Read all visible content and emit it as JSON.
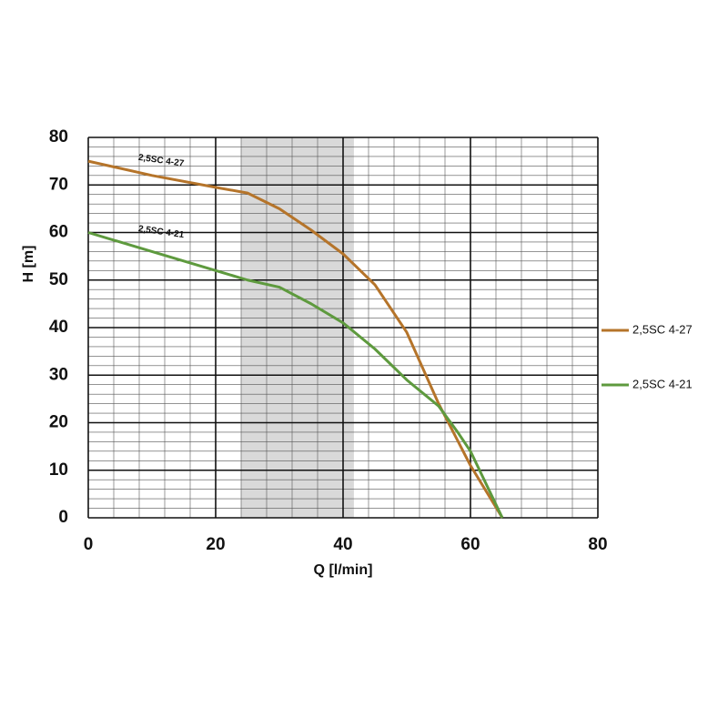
{
  "chart_data": {
    "type": "line",
    "xlabel": "Q [l/min]",
    "ylabel": "H [m]",
    "xlim": [
      0,
      80
    ],
    "xticks": [
      0,
      20,
      40,
      60,
      80
    ],
    "ylim": [
      0,
      80
    ],
    "yticks": [
      0,
      10,
      20,
      30,
      40,
      50,
      60,
      70,
      80
    ],
    "grid": true,
    "minor_xstep": 4,
    "minor_ystep": 2,
    "highlight_xrange": [
      24,
      41.7
    ],
    "highlight_color": "#d9d9d9",
    "legend": "right",
    "series": [
      {
        "name": "2,5SC 4-27",
        "color": "#b5742a",
        "x": [
          0,
          10,
          20,
          25,
          30,
          35,
          40,
          45,
          50,
          55,
          60,
          65
        ],
        "values": [
          75,
          72,
          69.5,
          68.3,
          65,
          60.5,
          55.5,
          49,
          39,
          24,
          11,
          0
        ]
      },
      {
        "name": "2,5SC 4-21",
        "color": "#5e9a3e",
        "x": [
          0,
          10,
          20,
          25,
          30,
          35,
          40,
          45,
          50,
          55,
          58,
          60,
          65
        ],
        "values": [
          60,
          56,
          52,
          50,
          48.5,
          45,
          41,
          35.5,
          29,
          23.5,
          18,
          14,
          0
        ]
      }
    ]
  }
}
